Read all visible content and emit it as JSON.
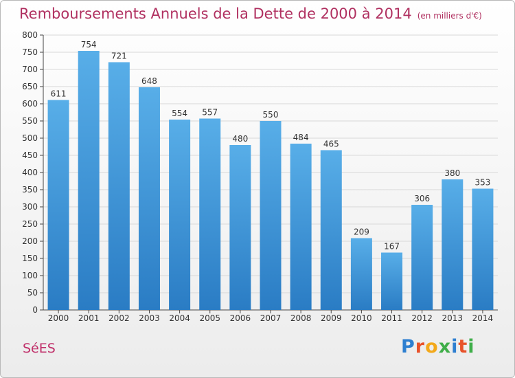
{
  "title": "Remboursements Annuels de la Dette de 2000 à 2014",
  "unit_note": "(en milliers d'€)",
  "commune": "SéES",
  "brand": {
    "letters": [
      "P",
      "r",
      "o",
      "x",
      "i",
      "t",
      "i"
    ],
    "colors": [
      "#2e7fd0",
      "#e8522a",
      "#f3a91b",
      "#3fae49",
      "#2e7fd0",
      "#e8522a",
      "#3fae49"
    ]
  },
  "colors": {
    "bar": "#3a92d8",
    "title": "#b03060",
    "commune": "#c0306a",
    "grid": "#d8d8d8"
  },
  "chart_data": {
    "type": "bar",
    "title": "Remboursements Annuels de la Dette de 2000 à 2014",
    "subtitle": "(en milliers d'€)",
    "xlabel": "",
    "ylabel": "",
    "categories": [
      "2000",
      "2001",
      "2002",
      "2003",
      "2004",
      "2005",
      "2006",
      "2007",
      "2008",
      "2009",
      "2010",
      "2011",
      "2012",
      "2013",
      "2014"
    ],
    "values": [
      611,
      754,
      721,
      648,
      554,
      557,
      480,
      550,
      484,
      465,
      209,
      167,
      306,
      380,
      353
    ],
    "ylim": [
      0,
      800
    ],
    "yticks": [
      0,
      50,
      100,
      150,
      200,
      250,
      300,
      350,
      400,
      450,
      500,
      550,
      600,
      650,
      700,
      750,
      800
    ],
    "grid": true,
    "data_labels": true
  }
}
